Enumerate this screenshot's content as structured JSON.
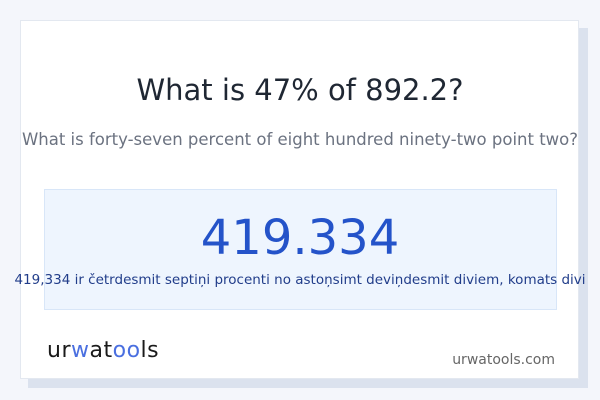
{
  "question": "What is 47% of 892.2?",
  "question_words": "What is forty-seven percent of eight hundred ninety-two point two?",
  "result": "419.334",
  "result_words": "419,334 ir četrdesmit septiņi procenti no astoņsimt deviņdesmit diviem, komats divi",
  "logo": {
    "p1": "ur",
    "p2": "w",
    "p3": "at",
    "p4": "oo",
    "p5": "ls"
  },
  "site": "urwatools.com",
  "colors": {
    "accent": "#2453c9",
    "result_bg": "#eef5fe"
  }
}
